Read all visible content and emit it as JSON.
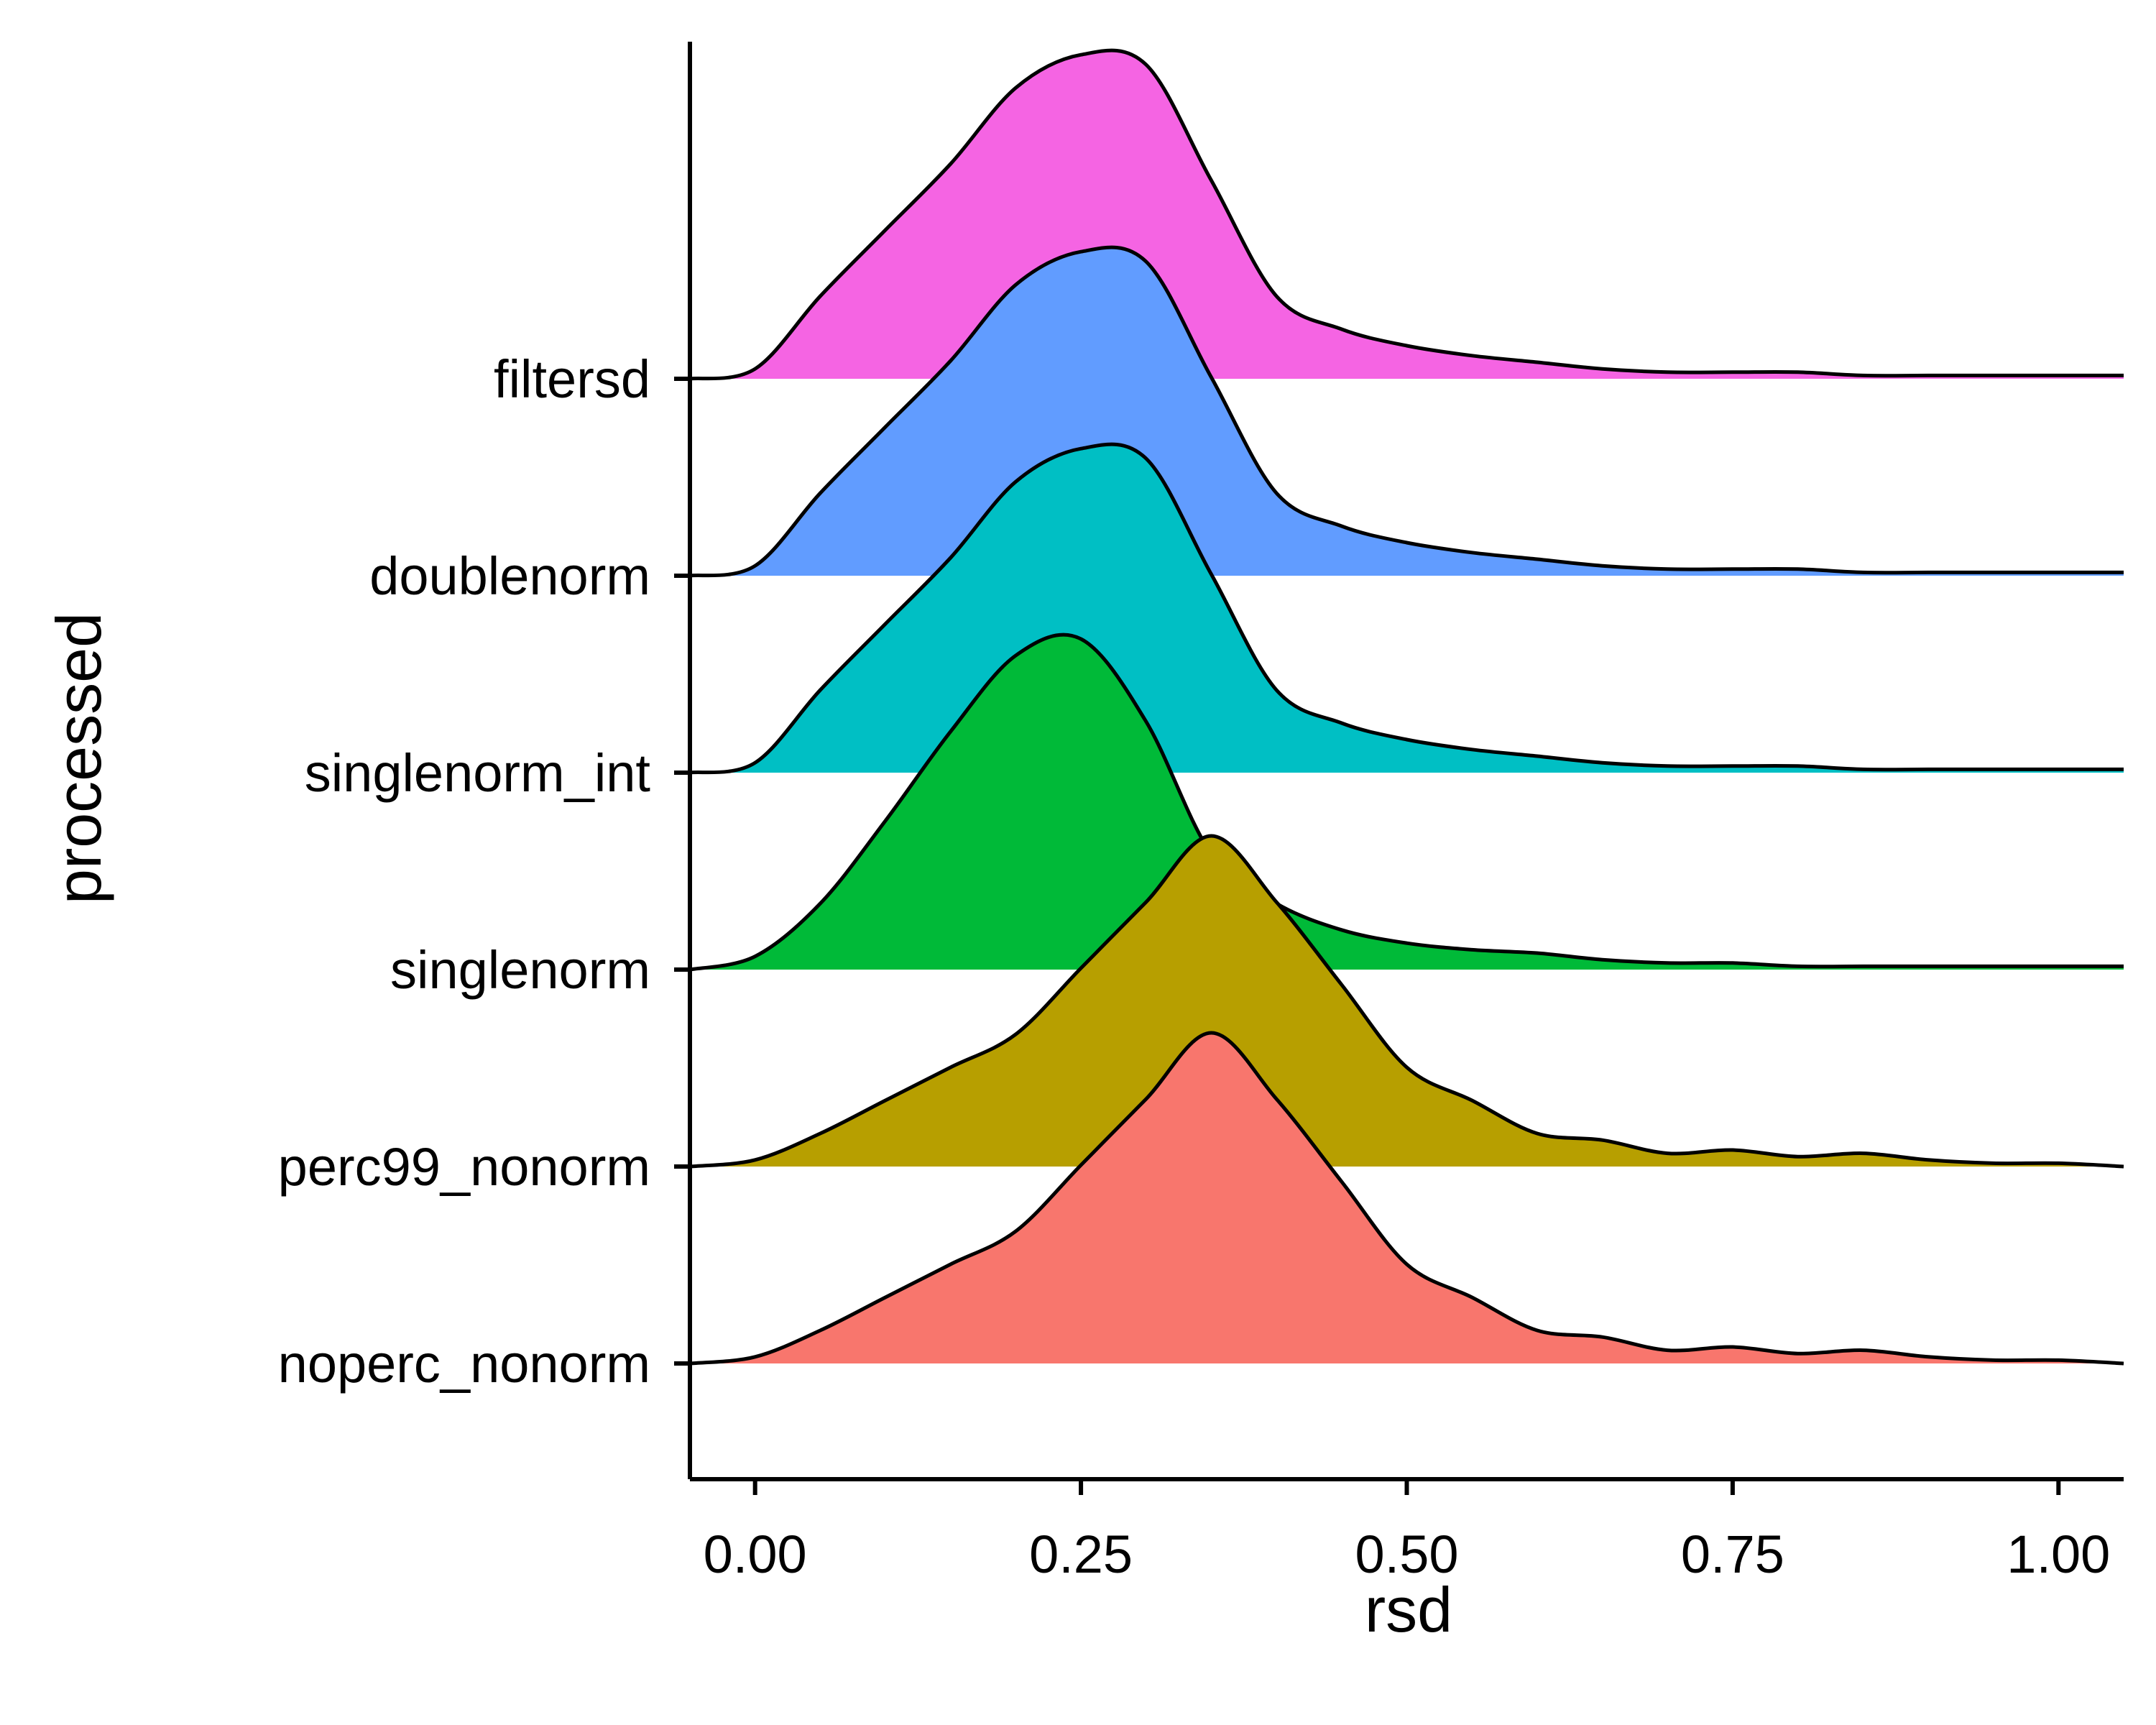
{
  "chart_data": {
    "type": "area",
    "subtype": "ridgeline-density",
    "title": "",
    "xlabel": "rsd",
    "ylabel": "processed",
    "xlim": [
      -0.05,
      1.05
    ],
    "x_ticks": [
      0,
      0.25,
      0.5,
      0.75,
      1.0
    ],
    "x_tick_labels": [
      "0.00",
      "0.25",
      "0.50",
      "0.75",
      "1.00"
    ],
    "categories": [
      "noperc_nonorm",
      "perc99_nonorm",
      "singlenorm",
      "singlenorm_int",
      "doublenorm",
      "filtersd"
    ],
    "grid": false,
    "legend": "none",
    "x": [
      -0.05,
      0.0,
      0.05,
      0.1,
      0.15,
      0.2,
      0.25,
      0.3,
      0.35,
      0.4,
      0.45,
      0.5,
      0.55,
      0.6,
      0.65,
      0.7,
      0.75,
      0.8,
      0.85,
      0.9,
      0.95,
      1.0,
      1.05
    ],
    "series": [
      {
        "name": "noperc_nonorm",
        "color": "#F8766D",
        "values": [
          0.0,
          0.02,
          0.1,
          0.2,
          0.3,
          0.4,
          0.6,
          0.8,
          1.0,
          0.8,
          0.55,
          0.3,
          0.2,
          0.1,
          0.08,
          0.04,
          0.05,
          0.03,
          0.04,
          0.02,
          0.01,
          0.01,
          0.0
        ]
      },
      {
        "name": "perc99_nonorm",
        "color": "#B79F00",
        "values": [
          0.0,
          0.02,
          0.1,
          0.2,
          0.3,
          0.4,
          0.6,
          0.8,
          1.0,
          0.8,
          0.55,
          0.3,
          0.2,
          0.1,
          0.08,
          0.04,
          0.05,
          0.03,
          0.04,
          0.02,
          0.01,
          0.01,
          0.0
        ]
      },
      {
        "name": "singlenorm",
        "color": "#00BA38",
        "values": [
          0.0,
          0.04,
          0.2,
          0.45,
          0.72,
          0.95,
          1.0,
          0.75,
          0.35,
          0.2,
          0.12,
          0.08,
          0.06,
          0.05,
          0.03,
          0.02,
          0.02,
          0.01,
          0.01,
          0.01,
          0.01,
          0.01,
          0.01
        ]
      },
      {
        "name": "singlenorm_int",
        "color": "#00BFC4",
        "values": [
          0.0,
          0.03,
          0.25,
          0.45,
          0.65,
          0.88,
          0.98,
          0.95,
          0.6,
          0.25,
          0.15,
          0.1,
          0.07,
          0.05,
          0.03,
          0.02,
          0.02,
          0.02,
          0.01,
          0.01,
          0.01,
          0.01,
          0.01
        ]
      },
      {
        "name": "doublenorm",
        "color": "#619CFF",
        "values": [
          0.0,
          0.03,
          0.25,
          0.45,
          0.65,
          0.88,
          0.98,
          0.95,
          0.6,
          0.25,
          0.15,
          0.1,
          0.07,
          0.05,
          0.03,
          0.02,
          0.02,
          0.02,
          0.01,
          0.01,
          0.01,
          0.01,
          0.01
        ]
      },
      {
        "name": "filtersd",
        "color": "#F564E3",
        "values": [
          0.0,
          0.03,
          0.25,
          0.45,
          0.65,
          0.88,
          0.98,
          0.95,
          0.6,
          0.25,
          0.15,
          0.1,
          0.07,
          0.05,
          0.03,
          0.02,
          0.02,
          0.02,
          0.01,
          0.01,
          0.01,
          0.01,
          0.01
        ]
      }
    ]
  }
}
